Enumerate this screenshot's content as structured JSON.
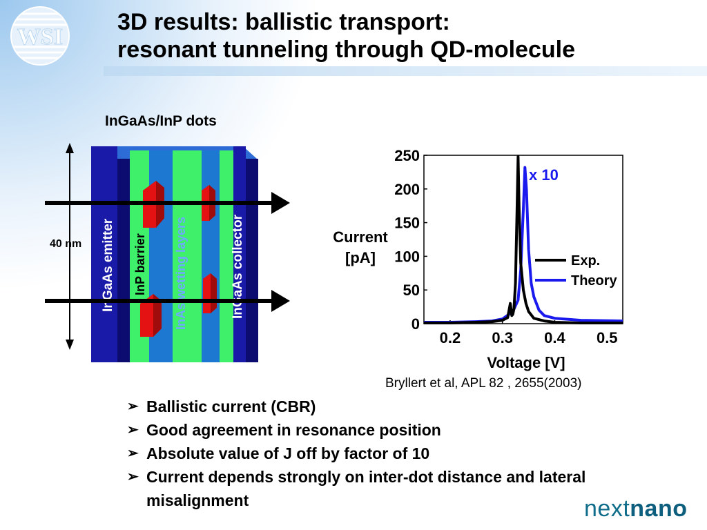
{
  "title": {
    "line1": "3D results: ballistic transport:",
    "line2": "resonant tunneling through QD-molecule"
  },
  "logo_text": "WSI",
  "schematic": {
    "caption": "InGaAs/InP dots",
    "dimension_label": "40 nm",
    "layer_labels": {
      "emitter": "InGaAs emitter",
      "barrier": "InP barrier",
      "wetting": "InAs wetting layers",
      "collector": "InGaAs collector"
    }
  },
  "chart_data": {
    "type": "line",
    "xlabel": "Voltage [V]",
    "ylabel": "Current [pA]",
    "xlim": [
      0.15,
      0.53
    ],
    "ylim": [
      0,
      250
    ],
    "xticks": [
      0.2,
      0.3,
      0.4,
      0.5
    ],
    "yticks": [
      0,
      50,
      100,
      150,
      200,
      250
    ],
    "annotation": "x 10",
    "legend_position": "right",
    "series": [
      {
        "name": "Exp.",
        "color": "#000000",
        "x": [
          0.15,
          0.2,
          0.25,
          0.28,
          0.3,
          0.31,
          0.315,
          0.318,
          0.32,
          0.322,
          0.325,
          0.328,
          0.33,
          0.332,
          0.335,
          0.34,
          0.345,
          0.35,
          0.36,
          0.38,
          0.4,
          0.45,
          0.53
        ],
        "y": [
          1,
          1,
          2,
          3,
          5,
          9,
          30,
          12,
          14,
          22,
          60,
          170,
          248,
          170,
          90,
          50,
          30,
          18,
          8,
          4,
          2,
          1,
          1
        ]
      },
      {
        "name": "Theory",
        "color": "#1a1aee",
        "x": [
          0.15,
          0.2,
          0.25,
          0.28,
          0.3,
          0.32,
          0.33,
          0.335,
          0.34,
          0.343,
          0.346,
          0.35,
          0.355,
          0.36,
          0.37,
          0.38,
          0.4,
          0.45,
          0.53
        ],
        "y": [
          2,
          2,
          3,
          4,
          7,
          18,
          35,
          80,
          170,
          232,
          200,
          110,
          60,
          40,
          20,
          12,
          8,
          5,
          4
        ]
      }
    ]
  },
  "citation": "Bryllert et al, APL 82 , 2655(2003)",
  "bullets": [
    "Ballistic current (CBR)",
    "Good agreement in resonance position",
    "Absolute value of J off by factor of 10",
    "Current depends strongly on inter-dot distance and lateral misalignment"
  ],
  "bullet_marker": "➢",
  "brand": {
    "prefix": "next",
    "suffix": "nano"
  },
  "colors": {
    "emitter_blue": "#1a1aa8",
    "green_layer": "#3ef06a",
    "wetting_blue": "#1c78d0",
    "dot_red": "#e41212",
    "brand_teal": "#0f6c8a"
  }
}
